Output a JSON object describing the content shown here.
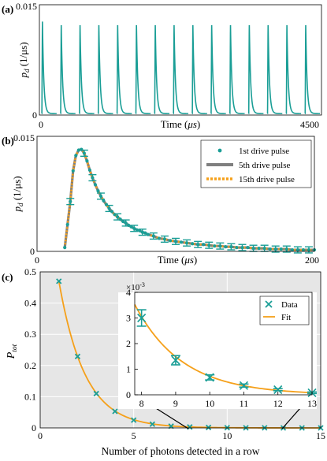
{
  "colors": {
    "teal": "#1a9e96",
    "orange": "#f5a01a",
    "gray": "#7f7f7f",
    "panel_c_bg": "#e6e6e6"
  },
  "chart_data": [
    {
      "panel": "(a)",
      "type": "line",
      "ylabel": "p_d (1/μs)",
      "ylabel_main": "p",
      "ylabel_sub": "d",
      "ylabel_rest": " (1/μs)",
      "xlabel": "Time (μs)",
      "xlabel_pre": "Time (",
      "xlabel_italic": "μs",
      "xlabel_post": ")",
      "xlim": [
        0,
        4500
      ],
      "ylim": [
        0,
        0.015
      ],
      "ytick_labels": [
        "0",
        "0.015"
      ],
      "xtick_labels": [
        "0",
        "4500"
      ],
      "pulse_period": 300,
      "pulse_count": 15,
      "pulse_peak": 0.0123,
      "pulse_peak_first": 0.0128,
      "series": [
        {
          "color": "#1a9e96"
        }
      ]
    },
    {
      "panel": "(b)",
      "type": "line",
      "ylabel": "p_d (1/μs)",
      "ylabel_main": "p",
      "ylabel_sub": "d",
      "ylabel_rest": " (1/μs)",
      "xlabel": "Time (μs)",
      "xlabel_pre": "Time (",
      "xlabel_italic": "μs",
      "xlabel_post": ")",
      "xlim": [
        0,
        200
      ],
      "ylim": [
        0,
        0.015
      ],
      "ytick_labels": [
        "0",
        "0.015"
      ],
      "xtick_labels": [
        "0",
        "200"
      ],
      "legend": "top-right",
      "series": [
        {
          "name": "1st drive pulse",
          "style": "markers",
          "color": "#1a9e96",
          "x": [
            20,
            22,
            24,
            26,
            28,
            30,
            32,
            34,
            36,
            38,
            40,
            42,
            44,
            46,
            48,
            50,
            52,
            54,
            56,
            58,
            60,
            62,
            64,
            66,
            68,
            70,
            72,
            74,
            76,
            78,
            80,
            84,
            88,
            92,
            96,
            100,
            104,
            108,
            112,
            116,
            120,
            124,
            128,
            132,
            136,
            140,
            144,
            148,
            152,
            156,
            160,
            164,
            168,
            172,
            176,
            180,
            184,
            188,
            192,
            196,
            200
          ],
          "y": [
            0.0005,
            0.0035,
            0.0065,
            0.0105,
            0.0125,
            0.0132,
            0.0133,
            0.0128,
            0.0118,
            0.0106,
            0.0096,
            0.0087,
            0.0079,
            0.0072,
            0.0066,
            0.0061,
            0.0056,
            0.0052,
            0.0048,
            0.0045,
            0.0042,
            0.0039,
            0.0037,
            0.0034,
            0.0032,
            0.003,
            0.0028,
            0.0027,
            0.0025,
            0.0024,
            0.0022,
            0.002,
            0.0017,
            0.0016,
            0.0014,
            0.0013,
            0.0012,
            0.0011,
            0.001,
            0.0009,
            0.0009,
            0.0008,
            0.0007,
            0.0007,
            0.0006,
            0.0006,
            0.0005,
            0.0005,
            0.0005,
            0.0004,
            0.0004,
            0.0004,
            0.0003,
            0.0003,
            0.0003,
            0.0003,
            0.0002,
            0.0002,
            0.0002,
            0.0002,
            0.0002
          ],
          "errorbar_x": [
            24,
            34,
            40,
            46,
            52,
            58,
            64,
            70,
            76,
            84,
            92,
            100,
            108,
            116,
            124,
            132,
            140,
            148,
            156,
            164,
            172,
            180,
            188,
            196
          ],
          "errorbar_half": 0.0004
        },
        {
          "name": "5th drive pulse",
          "style": "solid",
          "color": "#7f7f7f"
        },
        {
          "name": "15th drive pulse",
          "style": "dotted",
          "color": "#f5a01a"
        }
      ]
    },
    {
      "panel": "(c)",
      "type": "scatter",
      "xlabel": "Number of photons detected in a row",
      "ylabel": "P_tot",
      "ylabel_main": "P",
      "ylabel_sub": "tot",
      "xlim": [
        0,
        15
      ],
      "ylim": [
        0,
        0.5
      ],
      "xtick_labels": [
        "0",
        "5",
        "10",
        "15"
      ],
      "ytick_labels": [
        "0",
        "0.1",
        "0.2",
        "0.3",
        "0.4",
        "0.5"
      ],
      "grid": true,
      "series": [
        {
          "name": "Data",
          "style": "x-markers",
          "color": "#1a9e96",
          "x": [
            1,
            2,
            3,
            4,
            5,
            6,
            7,
            8,
            9,
            10,
            11,
            12,
            13,
            14,
            15
          ],
          "y": [
            0.47,
            0.229,
            0.11,
            0.053,
            0.025,
            0.012,
            0.0058,
            0.003,
            0.0014,
            0.0007,
            0.0004,
            0.0002,
            0.0001,
            5e-05,
            2e-05
          ]
        },
        {
          "name": "Fit",
          "style": "line",
          "color": "#f5a01a",
          "model": "exponential",
          "a": 0.98,
          "b": 0.73
        }
      ],
      "inset": {
        "xlim": [
          7.8,
          13
        ],
        "ylim": [
          0,
          4
        ],
        "y_multiplier_label": "×10",
        "y_multiplier_exp": "-3",
        "xtick_labels": [
          "8",
          "9",
          "10",
          "11",
          "12",
          "13"
        ],
        "ytick_labels": [
          "0",
          "1",
          "2",
          "3",
          "4"
        ],
        "legend": "top-right",
        "x": [
          8,
          9,
          10,
          11,
          12,
          13
        ],
        "y": [
          3.0,
          1.35,
          0.68,
          0.36,
          0.2,
          0.08
        ],
        "err": [
          0.32,
          0.18,
          0.1,
          0.06,
          0.04,
          0.03
        ],
        "fit_scale": 1000
      }
    }
  ]
}
